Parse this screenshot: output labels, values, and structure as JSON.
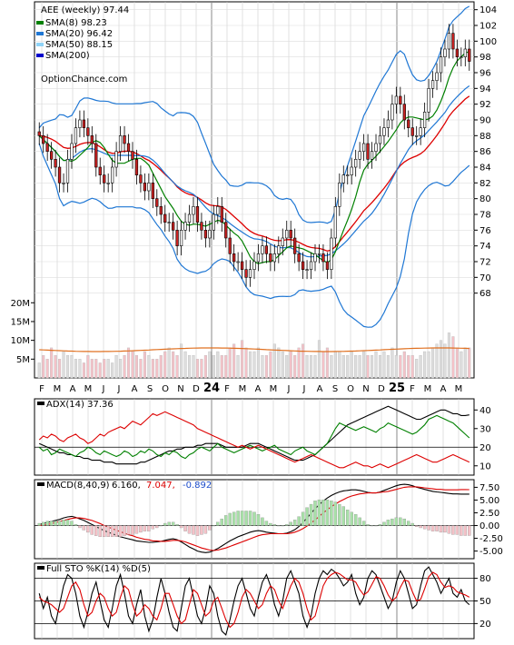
{
  "chart_data": [
    {
      "type": "candlestick",
      "title": "AEE (weekly) 97.44",
      "watermark": "OptionChance.com",
      "x_tick_labels": [
        "F",
        "M",
        "A",
        "M",
        "J",
        "J",
        "A",
        "S",
        "O",
        "N",
        "D",
        "24",
        "F",
        "M",
        "A",
        "M",
        "J",
        "J",
        "A",
        "S",
        "O",
        "N",
        "D",
        "25",
        "F",
        "M",
        "A",
        "M"
      ],
      "year_labels": [
        "24",
        "25"
      ],
      "ylim": [
        66,
        105
      ],
      "y_ticks": [
        68,
        70,
        72,
        74,
        76,
        78,
        80,
        82,
        84,
        86,
        88,
        90,
        92,
        94,
        96,
        98,
        100,
        102,
        104
      ],
      "legend": [
        {
          "label": "SMA(8) 98.23",
          "color": "#008000"
        },
        {
          "label": "SMA(20) 96.42",
          "color": "#1f77d4"
        },
        {
          "label": "SMA(50) 88.15",
          "color": "#8fd3f7"
        },
        {
          "label": "SMA(200)",
          "color": "#0000cc"
        }
      ],
      "close_series": [
        88,
        87,
        86,
        85,
        84,
        82,
        82,
        85,
        87,
        89,
        90,
        89,
        88,
        87,
        84,
        83,
        82,
        82,
        84,
        86,
        88,
        87,
        86,
        85,
        83,
        82,
        81,
        82,
        80,
        79,
        78,
        77,
        77,
        76,
        74,
        76,
        77,
        78,
        79,
        77,
        76,
        75,
        76,
        78,
        79,
        77,
        75,
        73,
        72,
        72,
        71,
        70,
        71,
        72,
        73,
        74,
        73,
        72,
        73,
        74,
        75,
        76,
        75,
        73,
        72,
        71,
        71,
        72,
        73,
        73,
        72,
        71,
        75,
        79,
        82,
        83,
        83,
        84,
        85,
        86,
        87,
        85,
        86,
        87,
        88,
        89,
        90,
        92,
        93,
        92,
        90,
        89,
        88,
        88,
        89,
        91,
        94,
        95,
        96,
        98,
        99,
        101,
        99,
        98,
        98,
        99,
        97.44
      ],
      "sma8_last": 98.23,
      "sma20_last": 96.42,
      "sma50_last": 88.15
    },
    {
      "type": "bar",
      "title": "Volume",
      "y_ticks": [
        "5M",
        "10M",
        "15M",
        "20M"
      ],
      "ylim": [
        0,
        22
      ],
      "values": [
        4,
        6,
        5,
        8,
        6,
        5,
        7,
        6,
        6,
        5,
        5,
        4,
        6,
        5,
        5,
        4,
        5,
        5,
        4,
        6,
        5,
        6,
        8,
        7,
        6,
        5,
        7,
        6,
        5,
        5,
        6,
        7,
        8,
        7,
        6,
        9,
        7,
        6,
        6,
        5,
        5,
        6,
        7,
        6,
        7,
        6,
        6,
        8,
        9,
        6,
        10,
        8,
        7,
        7,
        8,
        6,
        6,
        7,
        9,
        8,
        7,
        6,
        7,
        6,
        8,
        9,
        6,
        6,
        6,
        10,
        7,
        8,
        6,
        7,
        7,
        6,
        6,
        7,
        6,
        6,
        7,
        6,
        6,
        7,
        6,
        7,
        6,
        8,
        6,
        6,
        7,
        6,
        6,
        5,
        6,
        7,
        7,
        8,
        9,
        10,
        9,
        12,
        11,
        8,
        7,
        8,
        8
      ],
      "avg_level": 7.5
    },
    {
      "type": "line",
      "title": "ADX(14) 37.36",
      "y_ticks": [
        10,
        20,
        30,
        40
      ],
      "ylim": [
        5,
        46
      ],
      "series": [
        {
          "name": "ADX",
          "color": "#000000",
          "values": [
            22,
            21,
            20,
            19,
            18,
            17,
            17,
            16,
            16,
            15,
            15,
            14,
            14,
            13,
            13,
            13,
            12,
            12,
            12,
            11,
            11,
            11,
            11,
            11,
            11,
            12,
            12,
            13,
            14,
            15,
            16,
            17,
            18,
            18,
            19,
            19,
            20,
            20,
            20,
            21,
            21,
            22,
            22,
            22,
            22,
            21,
            20,
            20,
            20,
            20,
            20,
            21,
            22,
            22,
            22,
            21,
            20,
            19,
            18,
            17,
            16,
            15,
            14,
            13,
            13,
            13,
            14,
            15,
            16,
            18,
            20,
            22,
            24,
            26,
            28,
            30,
            32,
            33,
            34,
            35,
            36,
            37,
            38,
            39,
            40,
            41,
            42,
            41,
            40,
            39,
            38,
            37,
            36,
            35,
            35,
            36,
            37,
            38,
            39,
            40,
            40,
            39,
            38,
            38,
            37,
            37,
            37.36
          ]
        },
        {
          "name": "+DI",
          "color": "#008000",
          "values": [
            20,
            18,
            19,
            16,
            17,
            19,
            18,
            17,
            16,
            15,
            17,
            18,
            20,
            19,
            17,
            16,
            18,
            17,
            16,
            15,
            16,
            18,
            17,
            15,
            16,
            18,
            17,
            19,
            18,
            16,
            15,
            17,
            16,
            18,
            17,
            15,
            14,
            16,
            17,
            19,
            20,
            19,
            18,
            20,
            22,
            20,
            19,
            18,
            17,
            18,
            19,
            20,
            21,
            20,
            19,
            18,
            19,
            20,
            21,
            19,
            18,
            17,
            16,
            18,
            19,
            20,
            18,
            17,
            16,
            18,
            20,
            22,
            26,
            30,
            33,
            32,
            31,
            30,
            29,
            30,
            31,
            30,
            29,
            28,
            30,
            31,
            33,
            32,
            31,
            30,
            29,
            28,
            27,
            28,
            30,
            32,
            35,
            36,
            37,
            36,
            35,
            34,
            33,
            31,
            29,
            27,
            25
          ]
        },
        {
          "name": "-DI",
          "color": "#dd0000",
          "values": [
            24,
            26,
            25,
            27,
            26,
            24,
            23,
            25,
            26,
            27,
            25,
            24,
            22,
            23,
            25,
            27,
            26,
            28,
            29,
            30,
            31,
            30,
            32,
            34,
            33,
            32,
            34,
            36,
            38,
            37,
            38,
            39,
            38,
            37,
            36,
            35,
            34,
            33,
            32,
            30,
            29,
            28,
            27,
            26,
            25,
            24,
            23,
            22,
            21,
            20,
            21,
            20,
            19,
            20,
            21,
            20,
            19,
            18,
            17,
            16,
            15,
            14,
            13,
            12,
            13,
            14,
            15,
            16,
            15,
            14,
            13,
            12,
            11,
            10,
            9,
            9,
            10,
            11,
            12,
            11,
            10,
            10,
            9,
            10,
            11,
            10,
            9,
            10,
            11,
            12,
            13,
            14,
            15,
            16,
            15,
            14,
            13,
            12,
            12,
            13,
            14,
            15,
            16,
            15,
            14,
            13,
            12
          ]
        }
      ]
    },
    {
      "type": "line",
      "title": "MACD(8,40,9)",
      "macd_value": "6.160,",
      "signal_value": "7.047,",
      "hist_value": "-0.892",
      "y_ticks": [
        "7.50",
        "5.00",
        "2.50",
        "0.00",
        "-2.50",
        "-5.00"
      ],
      "ylim": [
        -6.5,
        9
      ],
      "series": [
        {
          "name": "MACD",
          "color": "#000000",
          "values": [
            0.2,
            0.4,
            0.6,
            0.8,
            1.0,
            1.2,
            1.5,
            1.7,
            1.8,
            1.6,
            1.3,
            1.0,
            0.6,
            0.2,
            -0.2,
            -0.6,
            -1.0,
            -1.3,
            -1.6,
            -1.9,
            -2.2,
            -2.4,
            -2.6,
            -2.8,
            -3.0,
            -3.1,
            -3.2,
            -3.3,
            -3.3,
            -3.2,
            -3.1,
            -2.9,
            -2.7,
            -2.6,
            -2.8,
            -3.2,
            -3.7,
            -4.2,
            -4.6,
            -5.0,
            -5.2,
            -5.3,
            -5.2,
            -4.9,
            -4.5,
            -4.0,
            -3.5,
            -3.0,
            -2.6,
            -2.2,
            -1.9,
            -1.6,
            -1.3,
            -1.1,
            -1.0,
            -1.1,
            -1.3,
            -1.4,
            -1.5,
            -1.6,
            -1.6,
            -1.5,
            -1.2,
            -0.8,
            -0.2,
            0.6,
            1.5,
            2.4,
            3.3,
            4.1,
            4.8,
            5.4,
            5.9,
            6.3,
            6.6,
            6.8,
            6.9,
            7.0,
            7.0,
            6.9,
            6.7,
            6.5,
            6.4,
            6.4,
            6.6,
            6.9,
            7.2,
            7.5,
            7.8,
            8.0,
            8.1,
            8.0,
            7.8,
            7.5,
            7.3,
            7.1,
            6.9,
            6.7,
            6.6,
            6.5,
            6.4,
            6.3,
            6.2,
            6.2,
            6.16,
            6.16,
            6.16
          ]
        },
        {
          "name": "Signal",
          "color": "#dd0000",
          "values": [
            0.0,
            0.1,
            0.2,
            0.4,
            0.6,
            0.8,
            1.0,
            1.2,
            1.4,
            1.5,
            1.5,
            1.4,
            1.2,
            1.0,
            0.7,
            0.4,
            0.0,
            -0.3,
            -0.6,
            -0.9,
            -1.2,
            -1.5,
            -1.8,
            -2.0,
            -2.3,
            -2.5,
            -2.7,
            -2.8,
            -3.0,
            -3.0,
            -3.1,
            -3.1,
            -3.0,
            -2.9,
            -2.9,
            -3.0,
            -3.2,
            -3.5,
            -3.8,
            -4.1,
            -4.4,
            -4.6,
            -4.8,
            -4.9,
            -4.8,
            -4.6,
            -4.4,
            -4.1,
            -3.8,
            -3.5,
            -3.2,
            -2.9,
            -2.6,
            -2.3,
            -2.0,
            -1.8,
            -1.7,
            -1.6,
            -1.6,
            -1.6,
            -1.6,
            -1.6,
            -1.5,
            -1.3,
            -1.0,
            -0.6,
            -0.1,
            0.5,
            1.1,
            1.8,
            2.5,
            3.1,
            3.7,
            4.2,
            4.7,
            5.1,
            5.5,
            5.8,
            6.0,
            6.2,
            6.3,
            6.4,
            6.4,
            6.4,
            6.5,
            6.6,
            6.7,
            6.9,
            7.1,
            7.3,
            7.5,
            7.6,
            7.6,
            7.6,
            7.5,
            7.4,
            7.3,
            7.2,
            7.1,
            7.1,
            7.0,
            7.0,
            7.0,
            7.0,
            7.05,
            7.05,
            7.047
          ]
        }
      ]
    },
    {
      "type": "line",
      "title": "Full STO %K(14) %D(5)",
      "y_ticks": [
        20,
        50,
        80
      ],
      "ylim": [
        0,
        100
      ],
      "series": [
        {
          "name": "%K",
          "color": "#000000",
          "values": [
            60,
            40,
            55,
            30,
            20,
            45,
            70,
            85,
            80,
            60,
            30,
            15,
            35,
            60,
            75,
            50,
            25,
            15,
            40,
            70,
            85,
            60,
            30,
            20,
            45,
            65,
            30,
            10,
            25,
            55,
            80,
            60,
            35,
            15,
            10,
            40,
            70,
            80,
            55,
            30,
            20,
            40,
            70,
            60,
            30,
            10,
            5,
            25,
            50,
            70,
            80,
            60,
            40,
            30,
            55,
            75,
            85,
            70,
            45,
            30,
            50,
            80,
            90,
            75,
            60,
            30,
            15,
            30,
            60,
            80,
            90,
            85,
            92,
            88,
            80,
            70,
            75,
            85,
            60,
            45,
            55,
            80,
            90,
            85,
            70,
            55,
            40,
            50,
            75,
            90,
            80,
            60,
            40,
            45,
            70,
            90,
            95,
            85,
            75,
            60,
            70,
            80,
            60,
            55,
            65,
            50,
            45
          ]
        },
        {
          "name": "%D",
          "color": "#dd0000",
          "values": [
            55,
            50,
            48,
            45,
            40,
            35,
            40,
            55,
            70,
            75,
            65,
            45,
            30,
            35,
            50,
            60,
            55,
            40,
            30,
            35,
            55,
            70,
            65,
            45,
            30,
            35,
            45,
            40,
            30,
            25,
            40,
            60,
            60,
            45,
            30,
            20,
            25,
            45,
            65,
            60,
            45,
            30,
            35,
            50,
            55,
            40,
            25,
            15,
            20,
            35,
            55,
            65,
            60,
            50,
            40,
            45,
            60,
            70,
            65,
            50,
            40,
            55,
            70,
            80,
            75,
            60,
            40,
            25,
            30,
            50,
            70,
            80,
            85,
            88,
            86,
            82,
            78,
            78,
            75,
            65,
            58,
            62,
            72,
            82,
            80,
            70,
            58,
            50,
            55,
            68,
            78,
            76,
            62,
            50,
            52,
            66,
            82,
            88,
            85,
            75,
            68,
            70,
            68,
            62,
            60,
            58,
            55
          ]
        }
      ]
    }
  ]
}
